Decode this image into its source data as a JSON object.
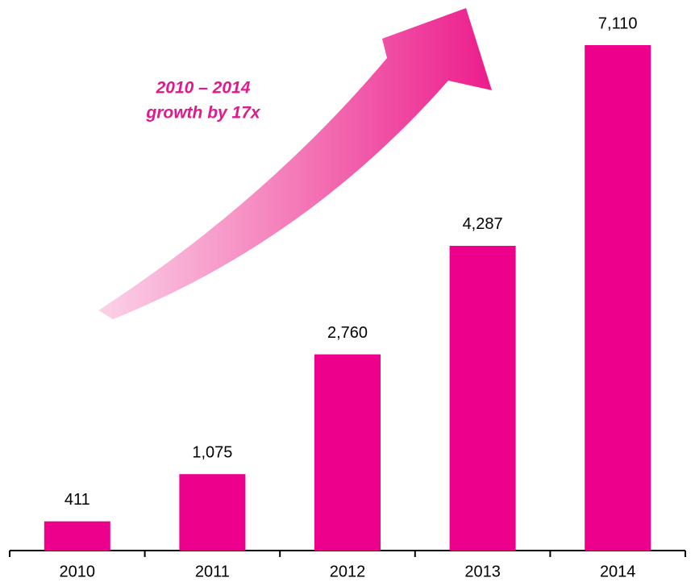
{
  "chart_data": {
    "type": "bar",
    "categories": [
      "2010",
      "2011",
      "2012",
      "2013",
      "2014"
    ],
    "values": [
      411,
      1075,
      2760,
      4287,
      7110
    ],
    "value_labels": [
      "411",
      "1,075",
      "2,760",
      "4,287",
      "7,110"
    ],
    "color": "#ec008c",
    "annotation": [
      "2010 – 2014",
      "growth by 17x"
    ]
  }
}
